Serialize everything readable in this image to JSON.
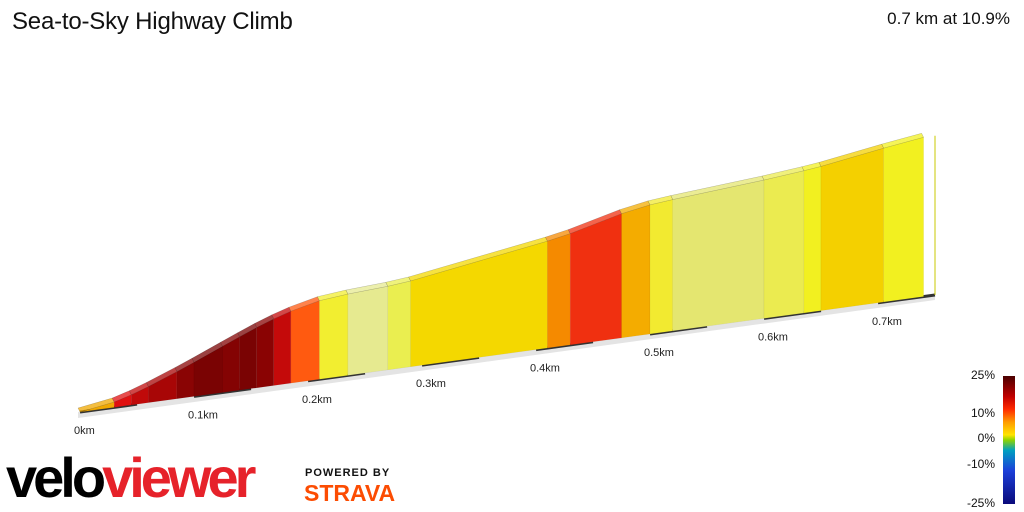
{
  "header": {
    "title": "Sea-to-Sky Highway Climb",
    "summary": "0.7 km at 10.9%"
  },
  "chart_data": {
    "type": "area",
    "title": "Sea-to-Sky Highway Climb",
    "x_unit": "km",
    "x_tick_labels": [
      "0km",
      "0.1km",
      "0.2km",
      "0.3km",
      "0.4km",
      "0.5km",
      "0.6km",
      "0.7km"
    ],
    "x_ticks": [
      0,
      0.1,
      0.2,
      0.3,
      0.4,
      0.5,
      0.6,
      0.7
    ],
    "xlim": [
      0,
      0.75
    ],
    "segments": [
      {
        "start": 0.0,
        "end": 0.03,
        "gradient": 8,
        "color": "#f0a800"
      },
      {
        "start": 0.03,
        "end": 0.045,
        "gradient": 15,
        "color": "#e01010"
      },
      {
        "start": 0.045,
        "end": 0.06,
        "gradient": 18,
        "color": "#c00a0a"
      },
      {
        "start": 0.06,
        "end": 0.085,
        "gradient": 20,
        "color": "#a80606"
      },
      {
        "start": 0.085,
        "end": 0.1,
        "gradient": 21,
        "color": "#8a0404"
      },
      {
        "start": 0.1,
        "end": 0.125,
        "gradient": 22,
        "color": "#7a0303"
      },
      {
        "start": 0.125,
        "end": 0.14,
        "gradient": 22,
        "color": "#840303"
      },
      {
        "start": 0.14,
        "end": 0.155,
        "gradient": 21,
        "color": "#7a0303"
      },
      {
        "start": 0.155,
        "end": 0.17,
        "gradient": 19,
        "color": "#8a0303"
      },
      {
        "start": 0.17,
        "end": 0.185,
        "gradient": 16,
        "color": "#c40a0a"
      },
      {
        "start": 0.185,
        "end": 0.21,
        "gradient": 12,
        "color": "#ff5a10"
      },
      {
        "start": 0.21,
        "end": 0.235,
        "gradient": 5,
        "color": "#f2ee30"
      },
      {
        "start": 0.235,
        "end": 0.27,
        "gradient": 3,
        "color": "#e6ea90"
      },
      {
        "start": 0.27,
        "end": 0.29,
        "gradient": 5,
        "color": "#eaee50"
      },
      {
        "start": 0.29,
        "end": 0.41,
        "gradient": 8,
        "color": "#f4d800"
      },
      {
        "start": 0.41,
        "end": 0.43,
        "gradient": 10,
        "color": "#f58a00"
      },
      {
        "start": 0.43,
        "end": 0.475,
        "gradient": 13,
        "color": "#f03010"
      },
      {
        "start": 0.475,
        "end": 0.5,
        "gradient": 9,
        "color": "#f4ac00"
      },
      {
        "start": 0.5,
        "end": 0.52,
        "gradient": 5,
        "color": "#f2ea30"
      },
      {
        "start": 0.52,
        "end": 0.6,
        "gradient": 4,
        "color": "#e4e670"
      },
      {
        "start": 0.6,
        "end": 0.635,
        "gradient": 5,
        "color": "#ebeb50"
      },
      {
        "start": 0.635,
        "end": 0.65,
        "gradient": 6,
        "color": "#f2f020"
      },
      {
        "start": 0.65,
        "end": 0.705,
        "gradient": 8,
        "color": "#f4d000"
      },
      {
        "start": 0.705,
        "end": 0.74,
        "gradient": 7,
        "color": "#f2f020"
      }
    ]
  },
  "legend": {
    "labels": [
      "25%",
      "10%",
      "0%",
      "-10%",
      "-25%"
    ]
  },
  "branding": {
    "logo_part1": "velo",
    "logo_part2": "viewer",
    "powered_by": "POWERED BY",
    "strava": "STRAVA"
  }
}
